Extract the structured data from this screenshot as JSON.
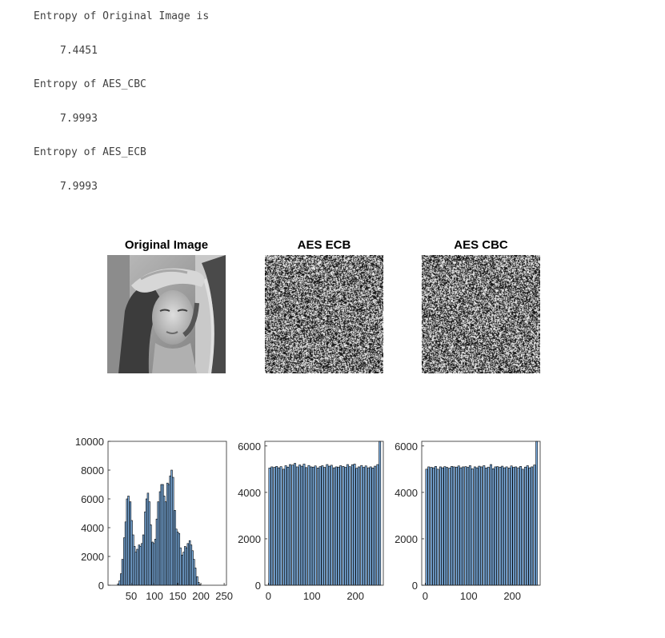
{
  "console": {
    "lines": [
      {
        "label": "Entropy of Original Image is",
        "value": "7.4451"
      },
      {
        "label": "Entropy of AES_CBC",
        "value": "7.9993"
      },
      {
        "label": "Entropy of AES_ECB",
        "value": "7.9993"
      }
    ]
  },
  "figure": {
    "titles": {
      "original": "Original Image",
      "ecb": "AES ECB",
      "cbc": "AES CBC"
    },
    "bar_color": "#7fb2e5",
    "edge_color": "#000000"
  },
  "chart_data": [
    {
      "type": "bar",
      "name": "Histogram of Original Image",
      "xlim": [
        0,
        255
      ],
      "ylim": [
        0,
        10000
      ],
      "xticks": [
        50,
        100,
        150,
        200,
        250
      ],
      "yticks": [
        0,
        2000,
        4000,
        6000,
        8000,
        10000
      ],
      "bin_width": 3.2,
      "x": [
        22,
        25,
        28,
        31,
        35,
        38,
        41,
        44,
        48,
        51,
        54,
        57,
        60,
        63,
        67,
        70,
        73,
        76,
        80,
        83,
        86,
        89,
        92,
        96,
        99,
        102,
        105,
        108,
        112,
        115,
        118,
        121,
        124,
        128,
        131,
        134,
        137,
        140,
        144,
        147,
        150,
        153,
        156,
        160,
        163,
        166,
        169,
        172,
        176,
        179,
        182,
        185,
        188,
        192,
        195,
        198,
        201,
        204,
        208,
        211,
        214,
        217,
        220,
        224,
        227,
        230,
        233
      ],
      "values": [
        100,
        300,
        800,
        1800,
        3300,
        4400,
        6000,
        6200,
        5800,
        4500,
        3500,
        2700,
        2300,
        2500,
        2800,
        2700,
        2900,
        3500,
        5100,
        6000,
        6400,
        5800,
        4200,
        3000,
        2900,
        3200,
        4600,
        5800,
        6500,
        7000,
        7000,
        6200,
        5800,
        7100,
        7000,
        7600,
        8000,
        7500,
        5200,
        3900,
        3700,
        3600,
        2600,
        2100,
        2300,
        2700,
        2600,
        2900,
        3100,
        2800,
        2400,
        1800,
        1200,
        600,
        200,
        50,
        0,
        0,
        0,
        0,
        0,
        0,
        0,
        0,
        0,
        0,
        0
      ]
    },
    {
      "type": "bar",
      "name": "Histogram of AES ECB",
      "xlim": [
        -8,
        264
      ],
      "ylim": [
        0,
        6200
      ],
      "xticks": [
        0,
        100,
        200
      ],
      "yticks": [
        0,
        2000,
        4000,
        6000
      ],
      "bin_width": 4.2,
      "x": [
        3,
        8,
        14,
        19,
        24,
        29,
        35,
        40,
        45,
        50,
        56,
        61,
        66,
        72,
        77,
        82,
        87,
        93,
        98,
        103,
        108,
        114,
        119,
        124,
        129,
        135,
        140,
        145,
        151,
        156,
        161,
        166,
        172,
        177,
        182,
        187,
        193,
        198,
        203,
        208,
        214,
        219,
        224,
        230,
        235,
        240,
        245,
        251,
        256
      ],
      "values": [
        5050,
        5100,
        5080,
        5120,
        5060,
        5110,
        5000,
        5150,
        5090,
        5200,
        5180,
        5250,
        5100,
        5180,
        5130,
        5220,
        5070,
        5160,
        5100,
        5090,
        5140,
        5050,
        5110,
        5150,
        5080,
        5200,
        5130,
        5170,
        5060,
        5100,
        5090,
        5150,
        5120,
        5080,
        5200,
        5110,
        5190,
        5220,
        5040,
        5100,
        5160,
        5080,
        5140,
        5060,
        5100,
        5050,
        5130,
        5200,
        6300
      ]
    },
    {
      "type": "bar",
      "name": "Histogram of AES CBC",
      "xlim": [
        -8,
        264
      ],
      "ylim": [
        0,
        6200
      ],
      "xticks": [
        0,
        100,
        200
      ],
      "yticks": [
        0,
        2000,
        4000,
        6000
      ],
      "bin_width": 4.2,
      "x": [
        3,
        8,
        14,
        19,
        24,
        29,
        35,
        40,
        45,
        50,
        56,
        61,
        66,
        72,
        77,
        82,
        87,
        93,
        98,
        103,
        108,
        114,
        119,
        124,
        129,
        135,
        140,
        145,
        151,
        156,
        161,
        166,
        172,
        177,
        182,
        187,
        193,
        198,
        203,
        208,
        214,
        219,
        224,
        230,
        235,
        240,
        245,
        251,
        256
      ],
      "values": [
        5000,
        5100,
        5080,
        5060,
        5120,
        5000,
        5100,
        5060,
        5110,
        5080,
        5050,
        5120,
        5100,
        5090,
        5140,
        5060,
        5100,
        5110,
        5080,
        5150,
        5020,
        5100,
        5060,
        5130,
        5100,
        5150,
        5050,
        5090,
        5200,
        5020,
        5100,
        5110,
        5090,
        5130,
        5060,
        5100,
        5050,
        5140,
        5080,
        5100,
        5060,
        5120,
        5000,
        5090,
        5150,
        5060,
        5100,
        5180,
        6300
      ]
    }
  ]
}
